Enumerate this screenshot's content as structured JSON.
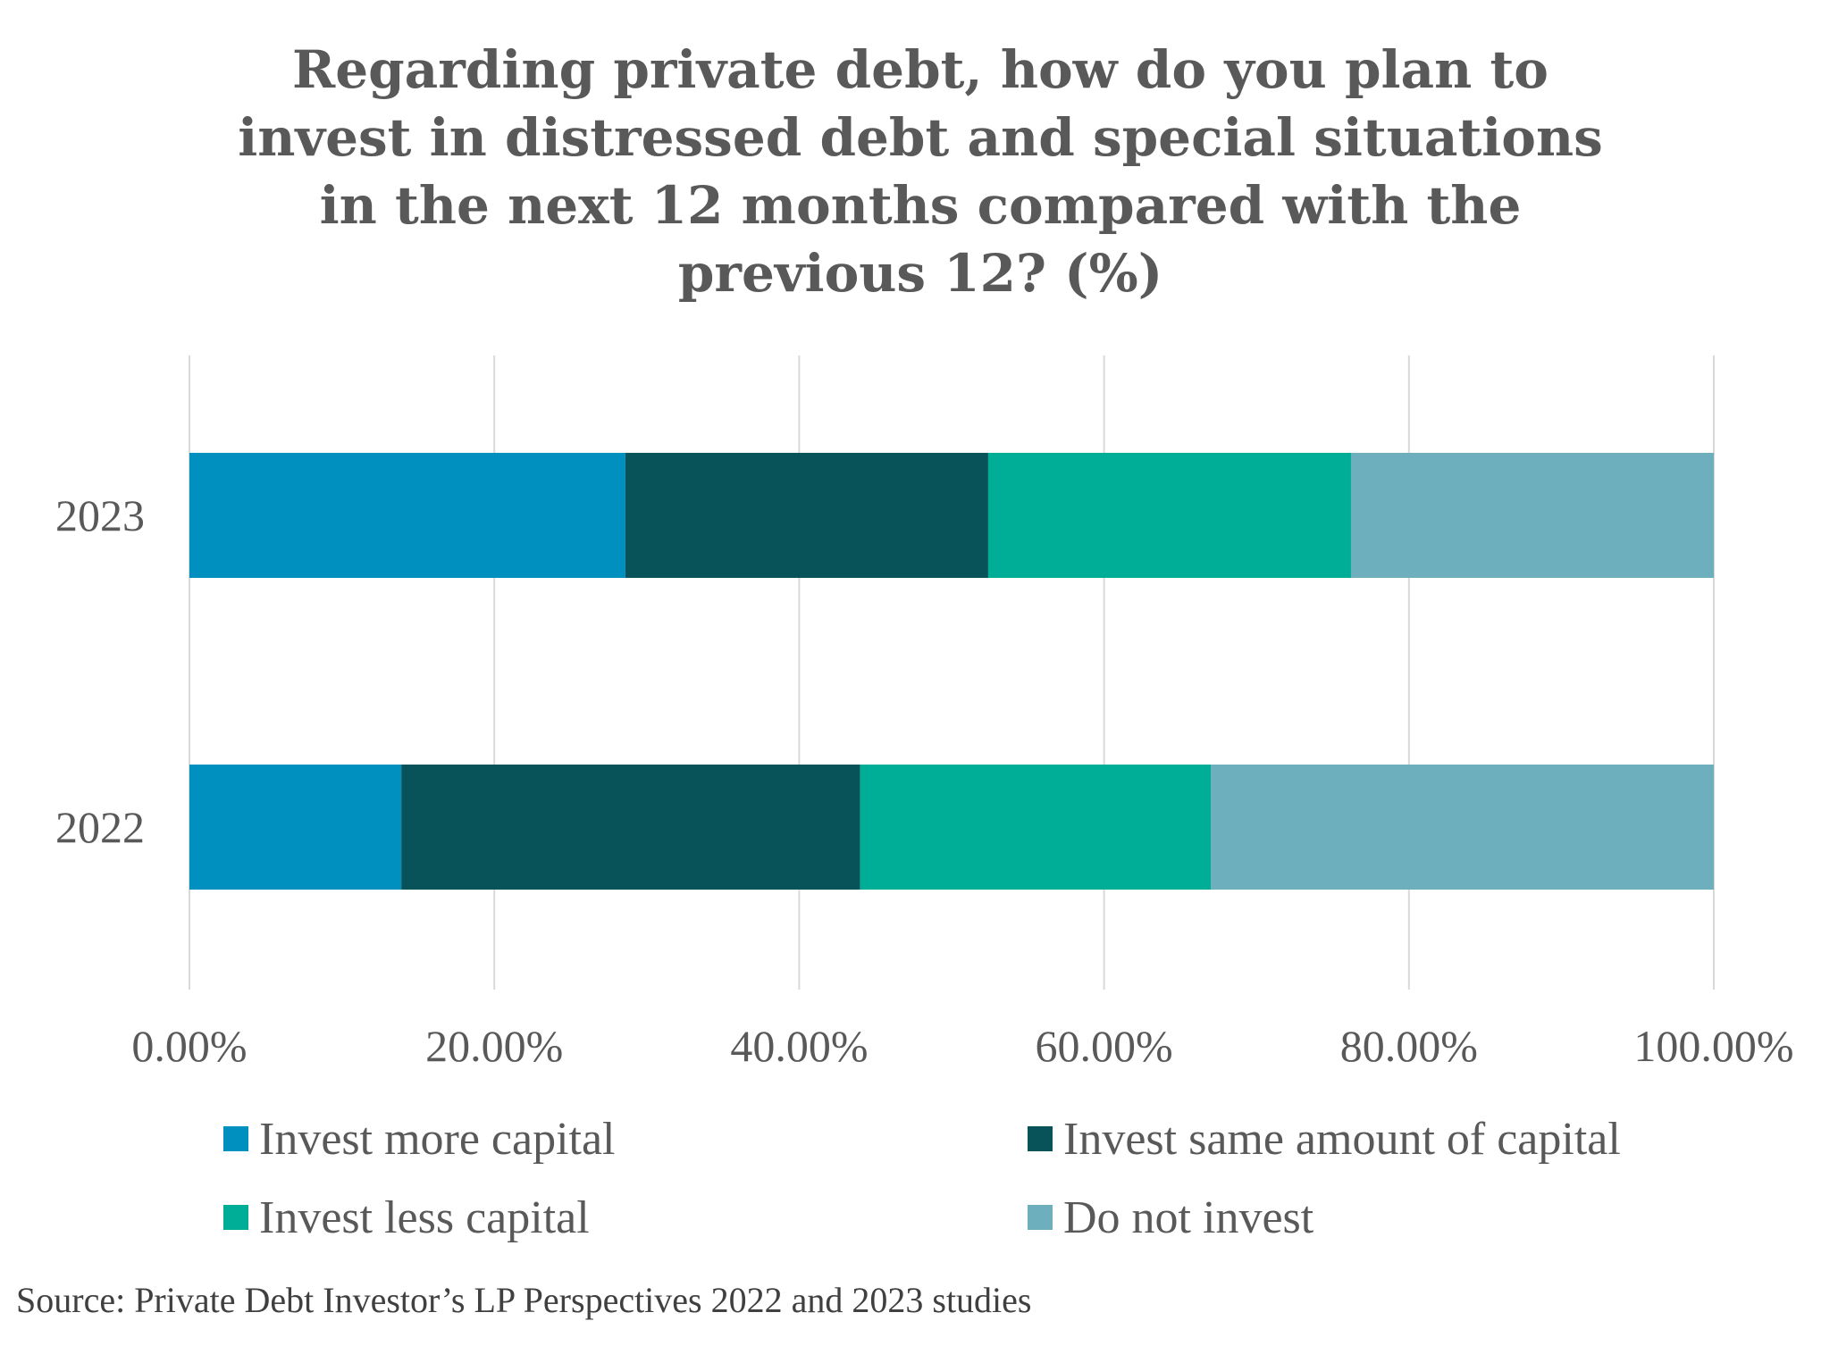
{
  "chart_data": {
    "type": "bar",
    "orientation": "horizontal",
    "stacked": true,
    "title_lines": [
      "Regarding private debt, how do you plan to",
      "invest in distressed debt and special situations",
      "in the next 12 months compared with the",
      "previous 12? (%)"
    ],
    "categories": [
      "2023",
      "2022"
    ],
    "series": [
      {
        "name": "Invest more capital",
        "color": "#0090C0",
        "values": [
          28.6,
          13.9
        ]
      },
      {
        "name": "Invest same amount of capital",
        "color": "#08525A",
        "values": [
          23.8,
          30.1
        ]
      },
      {
        "name": "Invest less capital",
        "color": "#00AD96",
        "values": [
          23.8,
          23.0
        ]
      },
      {
        "name": "Do not invest",
        "color": "#6DAFBC",
        "values": [
          23.8,
          33.0
        ]
      }
    ],
    "xlim": [
      0,
      100
    ],
    "x_ticks": [
      "0.00%",
      "20.00%",
      "40.00%",
      "60.00%",
      "80.00%",
      "100.00%"
    ],
    "grid": true,
    "legend_placement": "bottom",
    "source": "Source: Private Debt Investor’s LP Perspectives 2022 and 2023 studies"
  }
}
